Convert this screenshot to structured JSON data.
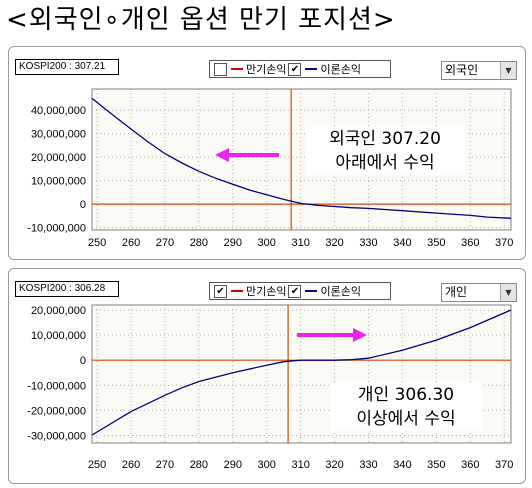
{
  "page": {
    "title": "<외국인∘개인 옵션 만기 포지션>"
  },
  "colors": {
    "maturity_line": "#cc0000",
    "theory_line": "#000080",
    "arrow": "#ee22ee",
    "current_marker": "#d24a0a",
    "plot_bg": "#fbfbf5",
    "grid": "#b0b0a0"
  },
  "icons": {
    "arrow_left": "arrow-left-icon",
    "arrow_right": "arrow-right-icon",
    "dropdown": "chevron-down-icon",
    "checkbox": "checkbox-icon"
  },
  "panels": [
    {
      "kospi_label": "KOSPI200 : 307.21",
      "legend": {
        "maturity_checked": false,
        "maturity_mark": "",
        "maturity_label": "만기손익",
        "theory_checked": true,
        "theory_mark": "✔",
        "theory_label": "이론손익"
      },
      "selector_value": "외국인",
      "annotation_line1": "외국인 307.20",
      "annotation_line2": "아래에서 수익"
    },
    {
      "kospi_label": "KOSPI200 : 306.28",
      "legend": {
        "maturity_checked": true,
        "maturity_mark": "✔",
        "maturity_label": "만기손익",
        "theory_checked": true,
        "theory_mark": "✔",
        "theory_label": "이론손익"
      },
      "selector_value": "개인",
      "annotation_line1": "개인 306.30",
      "annotation_line2": "이상에서 수익"
    }
  ],
  "chart_data": [
    {
      "type": "line",
      "xlim": [
        248.5,
        372
      ],
      "ylim": [
        -11000000,
        49000000
      ],
      "x_ticks": [
        250,
        260,
        270,
        280,
        290,
        300,
        310,
        320,
        330,
        340,
        350,
        360,
        370
      ],
      "y_ticks": [
        -10000000,
        0,
        10000000,
        20000000,
        30000000,
        40000000
      ],
      "y_tick_labels": [
        "-10,000,000",
        "0",
        "10,000,000",
        "20,000,000",
        "30,000,000",
        "40,000,000"
      ],
      "current_x": 307.2,
      "grid": true,
      "series": [
        {
          "name": "이론손익",
          "x": [
            248.5,
            255,
            260,
            265,
            270,
            275,
            280,
            285,
            290,
            295,
            300,
            305,
            310,
            315,
            320,
            325,
            330,
            340,
            350,
            360,
            365,
            372
          ],
          "y": [
            45000000,
            37500000,
            32000000,
            26500000,
            21500000,
            17500000,
            14000000,
            11000000,
            8500000,
            6000000,
            4000000,
            2000000,
            300000,
            -500000,
            -1000000,
            -1500000,
            -1800000,
            -2800000,
            -3800000,
            -4800000,
            -5500000,
            -6000000
          ]
        }
      ]
    },
    {
      "type": "line",
      "xlim": [
        248.5,
        372
      ],
      "ylim": [
        -33000000,
        22000000
      ],
      "x_ticks": [
        250,
        260,
        270,
        280,
        290,
        300,
        310,
        320,
        330,
        340,
        350,
        360,
        370
      ],
      "y_ticks": [
        -30000000,
        -20000000,
        -10000000,
        0,
        10000000,
        20000000
      ],
      "y_tick_labels": [
        "-30,000,000",
        "-20,000,000",
        "-10,000,000",
        "0",
        "10,000,000",
        "20,000,000"
      ],
      "current_x": 306.3,
      "grid": true,
      "series": [
        {
          "name": "이론손익",
          "x": [
            248.5,
            260,
            270,
            275,
            280,
            290,
            300,
            305,
            310,
            315,
            320,
            325,
            330,
            340,
            350,
            360,
            372
          ],
          "y": [
            -29800000,
            -20500000,
            -14000000,
            -11000000,
            -8500000,
            -5000000,
            -2000000,
            -600000,
            0,
            0,
            0,
            200000,
            800000,
            4000000,
            8000000,
            13000000,
            20000000
          ]
        }
      ]
    }
  ]
}
